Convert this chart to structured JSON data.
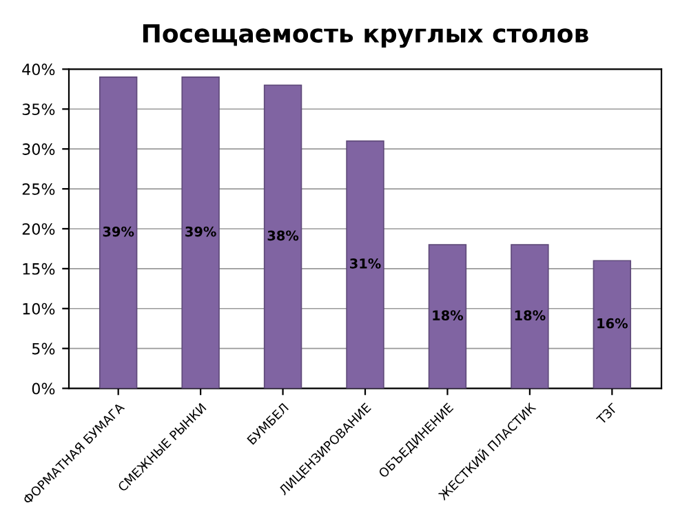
{
  "chart_data": {
    "type": "bar",
    "title": "Посещаемость круглых столов",
    "categories": [
      "ФОРМАТНАЯ БУМАГА",
      "СМЕЖНЫЕ РЫНКИ",
      "БУМБЕЛ",
      "ЛИЦЕНЗИРОВАНИЕ",
      "ОБЪЕДИНЕНИЕ",
      "ЖЕСТКИЙ ПЛАСТИК",
      "ТЗГ"
    ],
    "values": [
      39,
      39,
      38,
      31,
      18,
      18,
      16
    ],
    "value_labels": [
      "39%",
      "39%",
      "38%",
      "31%",
      "18%",
      "18%",
      "16%"
    ],
    "color": "#8064a2",
    "ylim": [
      0,
      40
    ],
    "yticks": [
      {
        "value": 0,
        "label": "0%"
      },
      {
        "value": 5,
        "label": "5%"
      },
      {
        "value": 10,
        "label": "10%"
      },
      {
        "value": 15,
        "label": "15%"
      },
      {
        "value": 20,
        "label": "20%"
      },
      {
        "value": 25,
        "label": "25%"
      },
      {
        "value": 30,
        "label": "30%"
      },
      {
        "value": 35,
        "label": "35%"
      },
      {
        "value": 40,
        "label": "40%"
      }
    ],
    "grid": "y",
    "legend": false
  }
}
